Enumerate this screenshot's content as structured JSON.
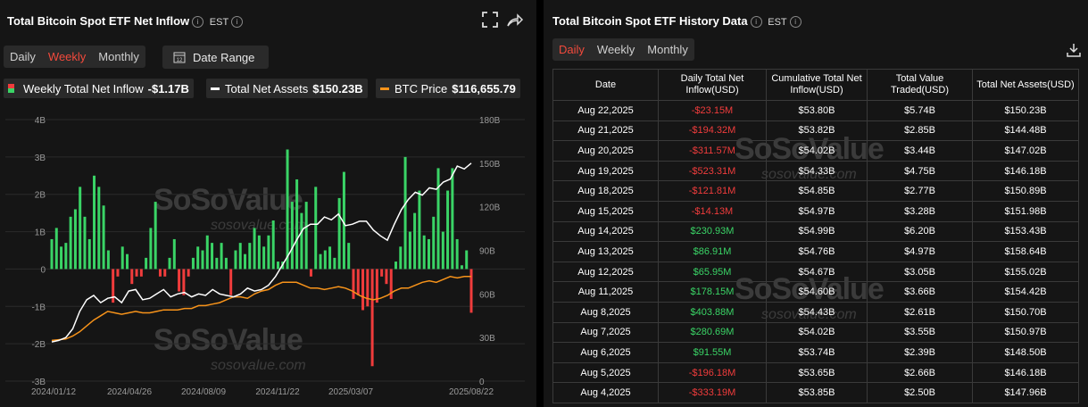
{
  "left_panel": {
    "title": "Total Bitcoin Spot ETF Net Inflow",
    "timezone": "EST",
    "tabs": [
      "Daily",
      "Weekly",
      "Monthly"
    ],
    "active_tab": "Weekly",
    "date_range_label": "Date Range",
    "legend": [
      {
        "label": "Weekly Total Net Inflow",
        "value": "-$1.17B",
        "color": "#3ad466"
      },
      {
        "label": "Total Net Assets",
        "value": "$150.23B",
        "color": "#ffffff"
      },
      {
        "label": "BTC Price",
        "value": "$116,655.79",
        "color": "#f7931a"
      }
    ],
    "watermark": {
      "brand": "SoSoValue",
      "site": "sosovalue.com"
    }
  },
  "chart_data": {
    "type": "bar",
    "x_tick_labels": [
      "2024/01/12",
      "2024/04/26",
      "2024/08/09",
      "2024/11/22",
      "2025/03/07",
      "2025/08/22"
    ],
    "y_left_ticks": [
      "4B",
      "3B",
      "2B",
      "1B",
      "0",
      "-1B",
      "-2B",
      "-3B"
    ],
    "y_right_ticks": [
      "180B",
      "150B",
      "120B",
      "90B",
      "60B",
      "30B",
      "0"
    ],
    "ylim_left": [
      -3,
      4
    ],
    "ylim_right": [
      0,
      180
    ],
    "grid": true,
    "series": [
      {
        "name": "Weekly Total Net Inflow",
        "axis": "left",
        "kind": "bar",
        "unit": "B",
        "values": [
          0.8,
          1.1,
          0.6,
          0.7,
          1.4,
          1.6,
          2.2,
          1.4,
          0.8,
          2.5,
          2.2,
          1.7,
          0.5,
          -0.9,
          -0.2,
          0.6,
          0.4,
          -0.4,
          -0.2,
          -0.2,
          0.3,
          1.1,
          1.8,
          -0.2,
          -0.2,
          0.3,
          0.8,
          -0.6,
          -0.7,
          -0.2,
          0.3,
          0.6,
          0.5,
          0.9,
          0.7,
          0.3,
          0.7,
          0.3,
          -0.7,
          0.5,
          0.7,
          0.4,
          0.7,
          1.1,
          0.9,
          0.6,
          0.9,
          1.3,
          0.2,
          0.2,
          3.2,
          1.8,
          2.4,
          1.5,
          1.8,
          -0.2,
          2.2,
          0.4,
          0.5,
          0.6,
          0.3,
          1.9,
          2.6,
          0.7,
          -0.8,
          -0.7,
          -1.1,
          -1.0,
          -2.6,
          -0.9,
          -0.2,
          -0.4,
          -0.8,
          0.2,
          0.6,
          3.0,
          1.0,
          1.5,
          2.1,
          0.9,
          0.8,
          1.4,
          2.7,
          1.0,
          2.1,
          2.7,
          0.8,
          0.1,
          0.5,
          -1.17
        ]
      },
      {
        "name": "Total Net Assets",
        "axis": "right",
        "kind": "line",
        "unit": "B",
        "values": [
          27,
          28,
          30,
          36,
          48,
          56,
          59,
          54,
          57,
          58,
          54,
          62,
          63,
          56,
          57,
          60,
          63,
          58,
          60,
          61,
          58,
          60,
          59,
          63,
          60,
          59,
          58,
          60,
          64,
          62,
          63,
          66,
          72,
          80,
          88,
          97,
          105,
          108,
          108,
          113,
          111,
          115,
          107,
          108,
          110,
          110,
          104,
          100,
          97,
          108,
          118,
          125,
          130,
          128,
          133,
          132,
          137,
          139,
          148,
          146,
          150
        ]
      },
      {
        "name": "BTC Price",
        "axis": "right",
        "kind": "line",
        "unit": "B",
        "values": [
          28,
          28.5,
          29,
          31,
          34,
          38,
          42,
          45,
          48,
          47,
          46,
          47,
          48,
          47,
          47,
          48,
          49,
          49,
          49,
          50,
          50,
          52,
          52,
          53,
          54,
          56,
          58,
          58,
          57,
          60,
          62,
          63,
          66,
          68,
          68,
          68,
          66,
          64,
          64,
          63,
          64,
          65,
          64,
          62,
          59,
          57,
          56,
          57,
          59,
          62,
          64,
          64,
          66,
          68,
          69,
          68,
          70,
          72,
          71,
          72,
          72
        ]
      }
    ]
  },
  "right_panel": {
    "title": "Total Bitcoin Spot ETF History Data",
    "timezone": "EST",
    "tabs": [
      "Daily",
      "Weekly",
      "Monthly"
    ],
    "active_tab": "Daily",
    "columns": [
      "Date",
      "Daily Total Net Inflow(USD)",
      "Cumulative Total Net Inflow(USD)",
      "Total Value Traded(USD)",
      "Total Net Assets(USD)"
    ],
    "rows": [
      [
        "Aug 22,2025",
        "-$23.15M",
        "$53.80B",
        "$5.74B",
        "$150.23B"
      ],
      [
        "Aug 21,2025",
        "-$194.32M",
        "$53.82B",
        "$2.85B",
        "$144.48B"
      ],
      [
        "Aug 20,2025",
        "-$311.57M",
        "$54.02B",
        "$3.44B",
        "$147.02B"
      ],
      [
        "Aug 19,2025",
        "-$523.31M",
        "$54.33B",
        "$4.75B",
        "$146.18B"
      ],
      [
        "Aug 18,2025",
        "-$121.81M",
        "$54.85B",
        "$2.77B",
        "$150.89B"
      ],
      [
        "Aug 15,2025",
        "-$14.13M",
        "$54.97B",
        "$3.28B",
        "$151.98B"
      ],
      [
        "Aug 14,2025",
        "$230.93M",
        "$54.99B",
        "$6.20B",
        "$153.43B"
      ],
      [
        "Aug 13,2025",
        "$86.91M",
        "$54.76B",
        "$4.97B",
        "$158.64B"
      ],
      [
        "Aug 12,2025",
        "$65.95M",
        "$54.67B",
        "$3.05B",
        "$155.02B"
      ],
      [
        "Aug 11,2025",
        "$178.15M",
        "$54.60B",
        "$3.66B",
        "$154.42B"
      ],
      [
        "Aug 8,2025",
        "$403.88M",
        "$54.43B",
        "$2.61B",
        "$150.70B"
      ],
      [
        "Aug 7,2025",
        "$280.69M",
        "$54.02B",
        "$3.55B",
        "$150.97B"
      ],
      [
        "Aug 6,2025",
        "$91.55M",
        "$53.74B",
        "$2.39B",
        "$148.50B"
      ],
      [
        "Aug 5,2025",
        "-$196.18M",
        "$53.65B",
        "$2.66B",
        "$146.18B"
      ],
      [
        "Aug 4,2025",
        "-$333.19M",
        "$53.85B",
        "$2.50B",
        "$147.96B"
      ]
    ]
  },
  "colors": {
    "positive": "#3ad466",
    "negative": "#f03c3c",
    "accent_tab": "#f24a3c",
    "btc": "#f7931a"
  }
}
